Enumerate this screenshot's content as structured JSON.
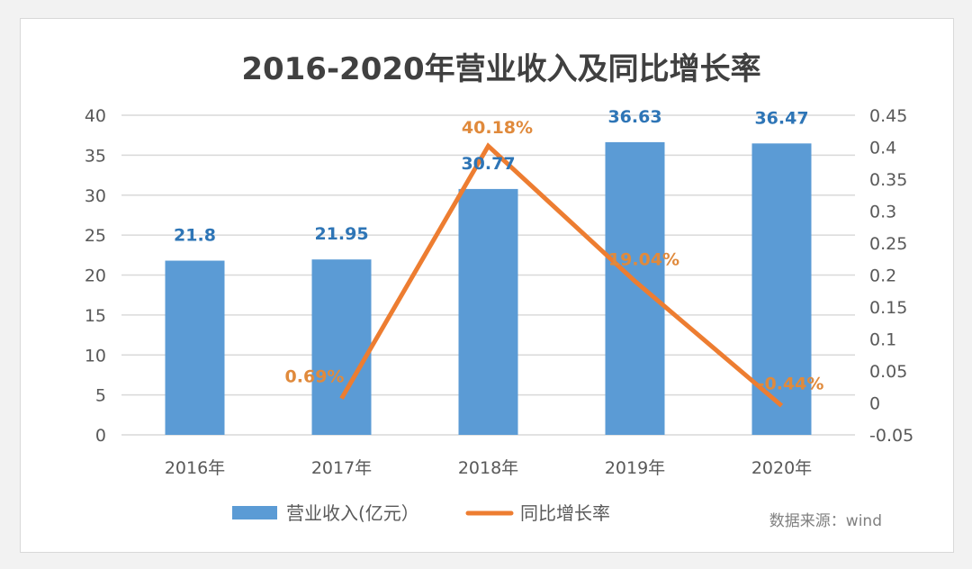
{
  "chart_data": {
    "type": "bar+line",
    "title": "2016-2020年营业收入及同比增长率",
    "categories": [
      "2016年",
      "2017年",
      "2018年",
      "2019年",
      "2020年"
    ],
    "series": [
      {
        "name": "营业收入(亿元）",
        "type": "bar",
        "axis": "left",
        "values": [
          21.8,
          21.95,
          30.77,
          36.63,
          36.47
        ],
        "labels": [
          "21.8",
          "21.95",
          "30.77",
          "36.63",
          "36.47"
        ],
        "color": "#5b9bd5"
      },
      {
        "name": "同比增长率",
        "type": "line",
        "axis": "right",
        "values": [
          null,
          0.0069,
          0.4018,
          0.1904,
          -0.0044
        ],
        "labels": [
          "",
          "0.69%",
          "40.18%",
          "19.04%",
          "-0.44%"
        ],
        "color": "#ed7d31"
      }
    ],
    "left_axis": {
      "ylim": [
        0,
        40
      ],
      "ticks": [
        "0",
        "5",
        "10",
        "15",
        "20",
        "25",
        "30",
        "35",
        "40"
      ]
    },
    "right_axis": {
      "ylim": [
        -0.05,
        0.45
      ],
      "ticks": [
        "-0.05",
        "0",
        "0.05",
        "0.1",
        "0.15",
        "0.2",
        "0.25",
        "0.3",
        "0.35",
        "0.4",
        "0.45"
      ]
    },
    "grid": true,
    "legend": "bottom",
    "source_note": "数据来源：wind",
    "bar_label_color": "#2e75b6",
    "line_label_color": "#e08a3c"
  }
}
